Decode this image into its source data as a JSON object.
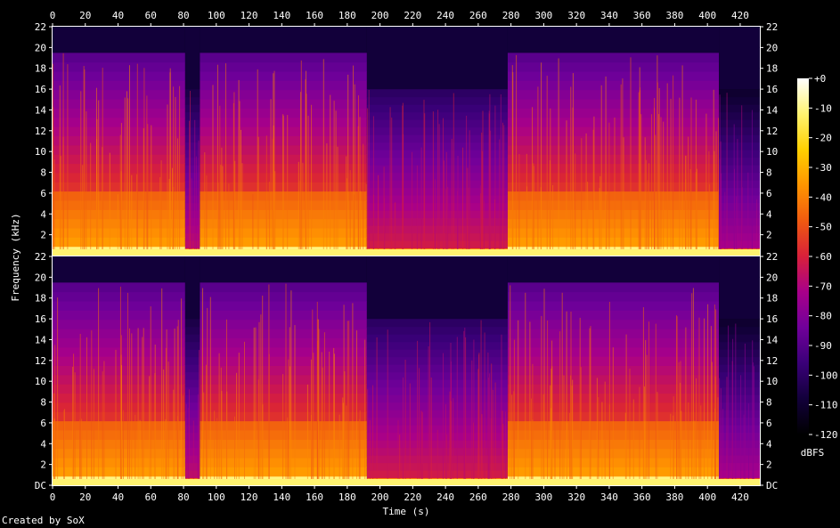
{
  "chart_data": {
    "type": "heatmap",
    "title": "",
    "xlabel": "Time (s)",
    "ylabel": "Frequency (kHz)",
    "colorbar_label": "dBFS",
    "xlim": [
      0,
      432
    ],
    "ylim": [
      0,
      22
    ],
    "x_ticks": [
      "0",
      "20",
      "40",
      "60",
      "80",
      "100",
      "120",
      "140",
      "160",
      "180",
      "200",
      "220",
      "240",
      "260",
      "280",
      "300",
      "320",
      "340",
      "360",
      "380",
      "400",
      "420"
    ],
    "y_ticks": [
      "DC",
      "2",
      "4",
      "6",
      "8",
      "10",
      "12",
      "14",
      "16",
      "18",
      "20",
      "22"
    ],
    "colorbar_ticks": [
      "+0",
      "-10",
      "-20",
      "-30",
      "-40",
      "-50",
      "-60",
      "-70",
      "-80",
      "-90",
      "-100",
      "-110",
      "-120"
    ],
    "colorbar_range": [
      -120,
      0
    ],
    "colormap": [
      "#000000",
      "#12003a",
      "#3a0078",
      "#70009a",
      "#a8008a",
      "#d8203a",
      "#f05a10",
      "#ff9500",
      "#ffd000",
      "#fff370",
      "#ffffff"
    ],
    "channels": 2,
    "segments": [
      {
        "start": 0,
        "end": 81,
        "cutoff_khz": 19.5,
        "level_db": -55
      },
      {
        "start": 81,
        "end": 90,
        "cutoff_khz": 16,
        "level_db": -80
      },
      {
        "start": 90,
        "end": 192,
        "cutoff_khz": 19.5,
        "level_db": -55
      },
      {
        "start": 192,
        "end": 278,
        "cutoff_khz": 16,
        "level_db": -75
      },
      {
        "start": 278,
        "end": 407,
        "cutoff_khz": 19.5,
        "level_db": -55
      },
      {
        "start": 407,
        "end": 432,
        "cutoff_khz": 16,
        "level_db": -85
      }
    ]
  },
  "footer": {
    "credit": "Created by SoX"
  }
}
